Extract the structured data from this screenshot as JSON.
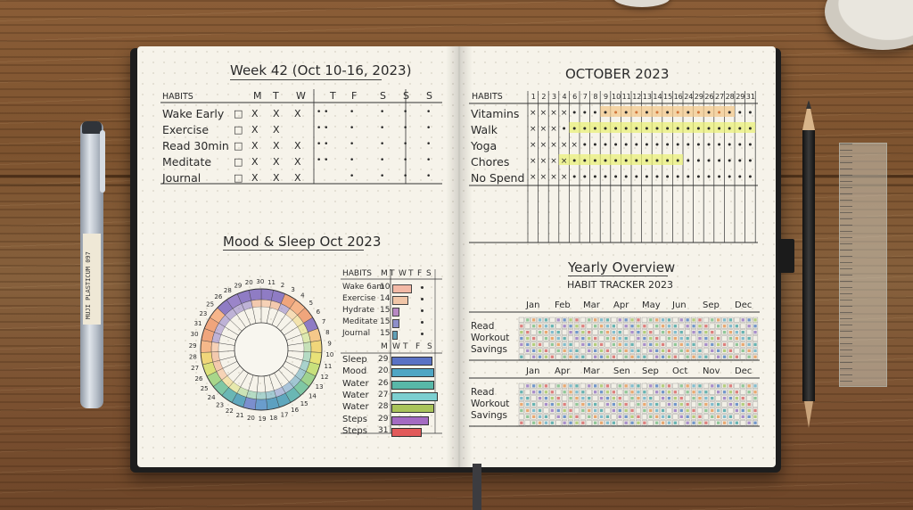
{
  "pen_label": "MUJI PLASTICUM 097",
  "left_page": {
    "weekly": {
      "title": "Week 42 (Oct 10-16, 2023)",
      "header_label": "HABITS",
      "days": [
        "M",
        "T",
        "W",
        "T",
        "F",
        "S",
        "S",
        "S"
      ],
      "habits": [
        "Wake Early",
        "Exercise",
        "Read 30min",
        "Meditate",
        "Journal"
      ],
      "marks": [
        [
          "□",
          "X",
          "X",
          "X",
          "•  •",
          "•",
          "•",
          "•",
          "•"
        ],
        [
          "□",
          "X",
          "X",
          "",
          "•  •",
          "•",
          "•",
          "•",
          "•"
        ],
        [
          "□",
          "X",
          "X",
          "X",
          "•  •",
          "•",
          "•",
          "•",
          "•"
        ],
        [
          "□",
          "X",
          "X",
          "X",
          "•  •",
          "•",
          "•",
          "•",
          "•"
        ],
        [
          "□",
          "X",
          "X",
          "X",
          "",
          "•",
          "•",
          "•",
          "•"
        ]
      ]
    },
    "mood": {
      "title": "Mood & Sleep Oct 2023",
      "ring_numbers": [
        "20",
        "30",
        "11",
        "2",
        "3",
        "4",
        "5",
        "6",
        "7",
        "8",
        "9",
        "10",
        "11",
        "12",
        "13",
        "14",
        "15",
        "16",
        "17",
        "18",
        "19",
        "20",
        "21",
        "22",
        "23",
        "24",
        "25",
        "26",
        "27",
        "28",
        "29",
        "30",
        "31",
        "23",
        "25",
        "26",
        "28",
        "29"
      ],
      "habit_table": {
        "header_label": "HABITS",
        "days": [
          "M",
          "T",
          "W",
          "T",
          "F",
          "S"
        ],
        "rows": [
          {
            "label": "Wake 6am",
            "value": "10"
          },
          {
            "label": "Exercise",
            "value": "14"
          },
          {
            "label": "Hydrate",
            "value": "15"
          },
          {
            "label": "Meditate",
            "value": "15"
          },
          {
            "label": "Journal",
            "value": "15"
          }
        ]
      },
      "sleep_table": {
        "days": [
          "M",
          "W",
          "T",
          "F",
          "S"
        ],
        "rows": [
          {
            "label": "Sleep",
            "value": "29"
          },
          {
            "label": "Mood",
            "value": "20"
          },
          {
            "label": "Water",
            "value": "26"
          },
          {
            "label": "Water",
            "value": "27"
          },
          {
            "label": "Water",
            "value": "28"
          },
          {
            "label": "Steps",
            "value": "29"
          },
          {
            "label": "Steps",
            "value": "31"
          }
        ]
      }
    }
  },
  "right_page": {
    "monthly": {
      "title": "OCTOBER 2023",
      "header_label": "HABITS",
      "days": [
        "1",
        "2",
        "3",
        "4",
        "6",
        "7",
        "8",
        "9",
        "10",
        "11",
        "12",
        "13",
        "14",
        "15",
        "16",
        "24",
        "29",
        "26",
        "27",
        "28",
        "29",
        "31"
      ],
      "habits": [
        "Vitamins",
        "Walk",
        "Yoga",
        "Chores",
        "No Spend"
      ]
    },
    "yearly": {
      "title": "Yearly Overview",
      "subtitle": "HABIT TRACKER 2023",
      "block1_months": [
        "Jan",
        "Feb",
        "Mar",
        "Apr",
        "May",
        "Jun",
        "Sep",
        "Dec"
      ],
      "block2_months": [
        "Jan",
        "Apr",
        "Mar",
        "Sen",
        "Sep",
        "Oct",
        "Nov",
        "Dec"
      ],
      "rows": [
        "Read",
        "Workout",
        "Savings"
      ]
    }
  }
}
